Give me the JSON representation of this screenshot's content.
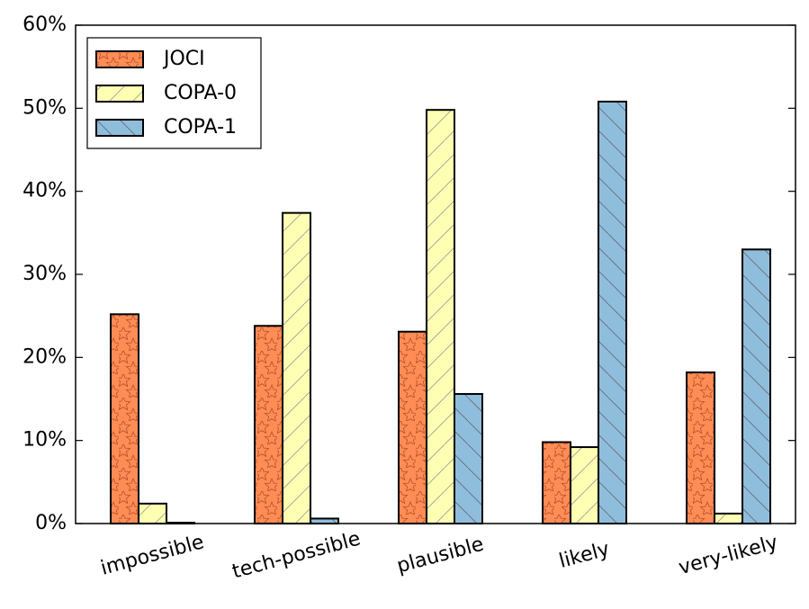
{
  "chart_data": {
    "type": "bar",
    "categories": [
      "impossible",
      "tech-possible",
      "plausible",
      "likely",
      "very-likely"
    ],
    "series": [
      {
        "name": "JOCI",
        "color": "#ff8c55",
        "hatch": "*",
        "values": [
          25.2,
          23.8,
          23.1,
          9.8,
          18.2
        ]
      },
      {
        "name": "COPA-0",
        "color": "#ffffb3",
        "hatch": "/",
        "values": [
          2.4,
          37.4,
          49.8,
          9.2,
          1.2
        ]
      },
      {
        "name": "COPA-1",
        "color": "#8fbedc",
        "hatch": "\\",
        "values": [
          0.1,
          0.6,
          15.6,
          50.8,
          33.0
        ]
      }
    ],
    "ylim": [
      0,
      60
    ],
    "yticks": [
      {
        "value": 0,
        "label": "0%"
      },
      {
        "value": 10,
        "label": "10%"
      },
      {
        "value": 20,
        "label": "20%"
      },
      {
        "value": 30,
        "label": "30%"
      },
      {
        "value": 40,
        "label": "40%"
      },
      {
        "value": 50,
        "label": "50%"
      },
      {
        "value": 60,
        "label": "60%"
      }
    ],
    "legend": "upper left"
  }
}
